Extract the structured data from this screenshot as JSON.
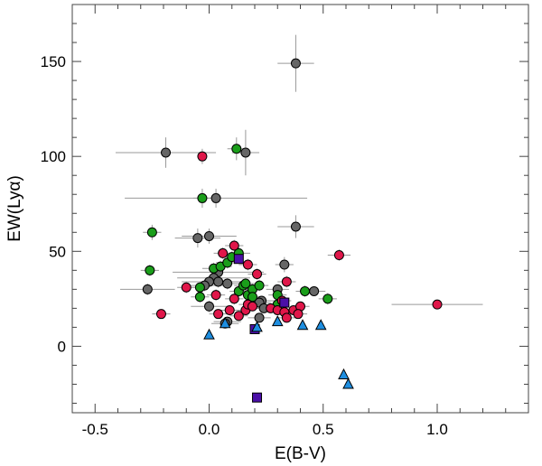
{
  "chart_data": {
    "type": "scatter",
    "xlabel": "E(B-V)",
    "ylabel": "EW(Lyα)",
    "xlim": [
      -0.6,
      1.4
    ],
    "ylim": [
      -35,
      180
    ],
    "xticks": [
      -0.5,
      0.0,
      0.5,
      1.0
    ],
    "xtick_labels": [
      "-0.5",
      "0.0",
      "0.5",
      "1.0"
    ],
    "yticks": [
      0,
      50,
      100,
      150
    ],
    "ytick_labels": [
      "0",
      "50",
      "100",
      "150"
    ],
    "grid": false,
    "legend": "none",
    "series": [
      {
        "marker": "circle",
        "color": "#666666",
        "points": [
          {
            "x": 0.38,
            "y": 149,
            "xerr": 0.08,
            "yerr": 15
          },
          {
            "x": -0.19,
            "y": 102,
            "xerr": 0.22,
            "yerr": 8
          },
          {
            "x": 0.16,
            "y": 102,
            "xerr": 0.06,
            "yerr": 12
          },
          {
            "x": 0.03,
            "y": 78,
            "xerr": 0.4,
            "yerr": 5
          },
          {
            "x": 0.38,
            "y": 63,
            "xerr": 0.08,
            "yerr": 6
          },
          {
            "x": -0.05,
            "y": 57,
            "xerr": 0.1,
            "yerr": 5
          },
          {
            "x": 0.0,
            "y": 58,
            "xerr": 0.12,
            "yerr": 4
          },
          {
            "x": 0.33,
            "y": 43,
            "xerr": 0.04,
            "yerr": 4
          },
          {
            "x": 0.04,
            "y": 39,
            "xerr": 0.2,
            "yerr": 3
          },
          {
            "x": 0.02,
            "y": 36,
            "xerr": 0.16,
            "yerr": 3
          },
          {
            "x": 0.0,
            "y": 34,
            "xerr": 0.12,
            "yerr": 3
          },
          {
            "x": -0.02,
            "y": 32,
            "xerr": 0.1,
            "yerr": 3
          },
          {
            "x": 0.04,
            "y": 34,
            "xerr": 0.14,
            "yerr": 3
          },
          {
            "x": 0.08,
            "y": 33,
            "xerr": 0.12,
            "yerr": 3
          },
          {
            "x": -0.27,
            "y": 30,
            "xerr": 0.12,
            "yerr": 3
          },
          {
            "x": 0.0,
            "y": 21,
            "xerr": 0.08,
            "yerr": 3
          },
          {
            "x": 0.08,
            "y": 13,
            "xerr": 0.06,
            "yerr": 2
          },
          {
            "x": 0.07,
            "y": 12,
            "xerr": 0.06,
            "yerr": 2
          },
          {
            "x": 0.23,
            "y": 24,
            "xerr": 0.06,
            "yerr": 2
          },
          {
            "x": 0.22,
            "y": 23,
            "xerr": 0.05,
            "yerr": 2
          },
          {
            "x": 0.24,
            "y": 20,
            "xerr": 0.05,
            "yerr": 2
          },
          {
            "x": 0.22,
            "y": 15,
            "xerr": 0.05,
            "yerr": 2
          },
          {
            "x": 0.46,
            "y": 29,
            "xerr": 0.05,
            "yerr": 2
          },
          {
            "x": 0.3,
            "y": 30,
            "xerr": 0.05,
            "yerr": 2
          }
        ]
      },
      {
        "marker": "circle",
        "color": "#1a9e1a",
        "points": [
          {
            "x": 0.12,
            "y": 104,
            "xerr": 0.04,
            "yerr": 6
          },
          {
            "x": -0.03,
            "y": 78,
            "xerr": 0.04,
            "yerr": 5
          },
          {
            "x": -0.25,
            "y": 60,
            "xerr": 0.04,
            "yerr": 4
          },
          {
            "x": -0.26,
            "y": 40,
            "xerr": 0.04,
            "yerr": 3
          },
          {
            "x": 0.02,
            "y": 41,
            "xerr": 0.05,
            "yerr": 3
          },
          {
            "x": 0.05,
            "y": 42,
            "xerr": 0.05,
            "yerr": 3
          },
          {
            "x": 0.08,
            "y": 44,
            "xerr": 0.05,
            "yerr": 3
          },
          {
            "x": 0.1,
            "y": 47,
            "xerr": 0.05,
            "yerr": 3
          },
          {
            "x": 0.13,
            "y": 49,
            "xerr": 0.05,
            "yerr": 3
          },
          {
            "x": -0.04,
            "y": 31,
            "xerr": 0.04,
            "yerr": 3
          },
          {
            "x": -0.04,
            "y": 26,
            "xerr": 0.04,
            "yerr": 3
          },
          {
            "x": 0.13,
            "y": 29,
            "xerr": 0.04,
            "yerr": 3
          },
          {
            "x": 0.15,
            "y": 32,
            "xerr": 0.04,
            "yerr": 3
          },
          {
            "x": 0.17,
            "y": 27,
            "xerr": 0.04,
            "yerr": 3
          },
          {
            "x": 0.19,
            "y": 30,
            "xerr": 0.04,
            "yerr": 3
          },
          {
            "x": 0.16,
            "y": 33,
            "xerr": 0.04,
            "yerr": 3
          },
          {
            "x": 0.19,
            "y": 26,
            "xerr": 0.04,
            "yerr": 3
          },
          {
            "x": 0.22,
            "y": 32,
            "xerr": 0.04,
            "yerr": 3
          },
          {
            "x": 0.3,
            "y": 27,
            "xerr": 0.04,
            "yerr": 3
          },
          {
            "x": 0.3,
            "y": 22,
            "xerr": 0.04,
            "yerr": 3
          },
          {
            "x": 0.42,
            "y": 29,
            "xerr": 0.04,
            "yerr": 3
          },
          {
            "x": 0.52,
            "y": 25,
            "xerr": 0.04,
            "yerr": 3
          }
        ]
      },
      {
        "marker": "circle",
        "color": "#e0174a",
        "points": [
          {
            "x": -0.03,
            "y": 100,
            "xerr": 0.02,
            "yerr": 4
          },
          {
            "x": 0.11,
            "y": 53,
            "xerr": 0.04,
            "yerr": 3
          },
          {
            "x": 0.57,
            "y": 48,
            "xerr": 0.05,
            "yerr": 3
          },
          {
            "x": 0.06,
            "y": 49,
            "xerr": 0.04,
            "yerr": 3
          },
          {
            "x": 0.17,
            "y": 43,
            "xerr": 0.04,
            "yerr": 3
          },
          {
            "x": 0.21,
            "y": 38,
            "xerr": 0.04,
            "yerr": 3
          },
          {
            "x": -0.1,
            "y": 31,
            "xerr": 0.04,
            "yerr": 3
          },
          {
            "x": 0.03,
            "y": 27,
            "xerr": 0.04,
            "yerr": 3
          },
          {
            "x": 0.11,
            "y": 25,
            "xerr": 0.04,
            "yerr": 3
          },
          {
            "x": 0.34,
            "y": 34,
            "xerr": 0.04,
            "yerr": 3
          },
          {
            "x": -0.21,
            "y": 17,
            "xerr": 0.04,
            "yerr": 2
          },
          {
            "x": 0.04,
            "y": 17,
            "xerr": 0.04,
            "yerr": 2
          },
          {
            "x": 0.09,
            "y": 19,
            "xerr": 0.04,
            "yerr": 2
          },
          {
            "x": 0.13,
            "y": 16,
            "xerr": 0.04,
            "yerr": 2
          },
          {
            "x": 0.16,
            "y": 19,
            "xerr": 0.04,
            "yerr": 2
          },
          {
            "x": 0.17,
            "y": 22,
            "xerr": 0.04,
            "yerr": 2
          },
          {
            "x": 0.19,
            "y": 21,
            "xerr": 0.04,
            "yerr": 2
          },
          {
            "x": 0.27,
            "y": 20,
            "xerr": 0.04,
            "yerr": 2
          },
          {
            "x": 0.3,
            "y": 19,
            "xerr": 0.04,
            "yerr": 2
          },
          {
            "x": 0.33,
            "y": 18,
            "xerr": 0.04,
            "yerr": 2
          },
          {
            "x": 0.34,
            "y": 15,
            "xerr": 0.04,
            "yerr": 2
          },
          {
            "x": 0.32,
            "y": 24,
            "xerr": 0.04,
            "yerr": 2
          },
          {
            "x": 0.37,
            "y": 19,
            "xerr": 0.04,
            "yerr": 2
          },
          {
            "x": 0.4,
            "y": 21,
            "xerr": 0.04,
            "yerr": 2
          },
          {
            "x": 0.39,
            "y": 17,
            "xerr": 0.04,
            "yerr": 2
          },
          {
            "x": 1.0,
            "y": 22,
            "xerr": 0.2,
            "yerr": 2
          }
        ]
      },
      {
        "marker": "square",
        "color": "#4b0fa8",
        "points": [
          {
            "x": 0.13,
            "y": 46
          },
          {
            "x": 0.33,
            "y": 23
          },
          {
            "x": 0.2,
            "y": 9
          },
          {
            "x": 0.21,
            "y": -27
          }
        ]
      },
      {
        "marker": "triangle",
        "color": "#1e8ee0",
        "points": [
          {
            "x": 0.0,
            "y": 6
          },
          {
            "x": 0.07,
            "y": 12
          },
          {
            "x": 0.21,
            "y": 10
          },
          {
            "x": 0.3,
            "y": 13
          },
          {
            "x": 0.41,
            "y": 11
          },
          {
            "x": 0.49,
            "y": 11
          },
          {
            "x": 0.59,
            "y": -15
          },
          {
            "x": 0.61,
            "y": -20
          }
        ]
      }
    ]
  }
}
